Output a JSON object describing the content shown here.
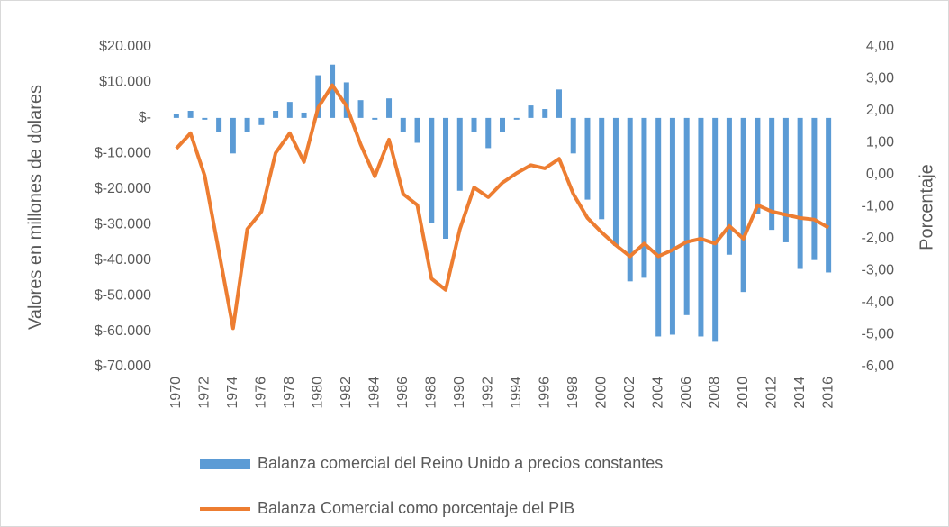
{
  "chart_data": {
    "type": "bar_line",
    "categories": [
      "1970",
      null,
      "1972",
      null,
      "1974",
      null,
      "1976",
      null,
      "1978",
      null,
      "1980",
      null,
      "1982",
      null,
      "1984",
      null,
      "1986",
      null,
      "1988",
      null,
      "1990",
      null,
      "1992",
      null,
      "1994",
      null,
      "1996",
      null,
      "1998",
      null,
      "2000",
      null,
      "2002",
      null,
      "2004",
      null,
      "2006",
      null,
      "2008",
      null,
      "2010",
      null,
      "2012",
      null,
      "2014",
      null,
      "2016"
    ],
    "series": [
      {
        "name": "Balanza comercial del Reino Unido a precios constantes",
        "color": "#5b9bd5",
        "type": "bar",
        "values": [
          1000,
          2000,
          -500,
          -4000,
          -10000,
          -4000,
          -2000,
          2000,
          4500,
          1500,
          12000,
          15000,
          10000,
          5000,
          -500,
          5500,
          -4000,
          -7000,
          -29500,
          -34000,
          -20500,
          -4000,
          -8500,
          -4000,
          -500,
          3500,
          2500,
          8000,
          -10000,
          -23000,
          -28500,
          -36000,
          -46000,
          -45000,
          -61500,
          -61000,
          -55500,
          -61500,
          -63000,
          -38500,
          -49000,
          -27000,
          -31500,
          -35000,
          -42500,
          -40000,
          -43500
        ]
      },
      {
        "name": "Balanza Comercial como porcentaje del PIB",
        "color": "#ed7d31",
        "type": "line",
        "axis": "y2",
        "values": [
          0.82,
          1.3,
          -0.03,
          -2.4,
          -4.8,
          -1.7,
          -1.15,
          0.68,
          1.3,
          0.4,
          2.1,
          2.8,
          2.15,
          0.95,
          -0.05,
          1.1,
          -0.6,
          -0.95,
          -3.25,
          -3.6,
          -1.7,
          -0.4,
          -0.7,
          -0.25,
          0.05,
          0.3,
          0.2,
          0.5,
          -0.6,
          -1.35,
          -1.8,
          -2.2,
          -2.55,
          -2.15,
          -2.55,
          -2.35,
          -2.1,
          -2.0,
          -2.15,
          -1.6,
          -2.0,
          -0.95,
          -1.15,
          -1.25,
          -1.35,
          -1.4,
          -1.65
        ]
      }
    ],
    "ylabel": "Valores en millones de dolares",
    "y2label": "Porcentaje",
    "ylim": [
      -70000,
      20000
    ],
    "yticks": [
      {
        "value": 20000,
        "label": "$20.000"
      },
      {
        "value": 10000,
        "label": "$10.000"
      },
      {
        "value": 0,
        "label": "$-"
      },
      {
        "value": -10000,
        "label": "$-10.000"
      },
      {
        "value": -20000,
        "label": "$-20.000"
      },
      {
        "value": -30000,
        "label": "$-30.000"
      },
      {
        "value": -40000,
        "label": "$-40.000"
      },
      {
        "value": -50000,
        "label": "$-50.000"
      },
      {
        "value": -60000,
        "label": "$-60.000"
      },
      {
        "value": -70000,
        "label": "$-70.000"
      }
    ],
    "y2lim": [
      -6,
      4
    ],
    "y2ticks": [
      {
        "value": 4,
        "label": "4,00"
      },
      {
        "value": 3,
        "label": "3,00"
      },
      {
        "value": 2,
        "label": "2,00"
      },
      {
        "value": 1,
        "label": "1,00"
      },
      {
        "value": 0,
        "label": "0,00"
      },
      {
        "value": -1,
        "label": "-1,00"
      },
      {
        "value": -2,
        "label": "-2,00"
      },
      {
        "value": -3,
        "label": "-3,00"
      },
      {
        "value": -4,
        "label": "-4,00"
      },
      {
        "value": -5,
        "label": "-5,00"
      },
      {
        "value": -6,
        "label": "-6,00"
      }
    ],
    "legend": "bottom",
    "grid": false
  }
}
